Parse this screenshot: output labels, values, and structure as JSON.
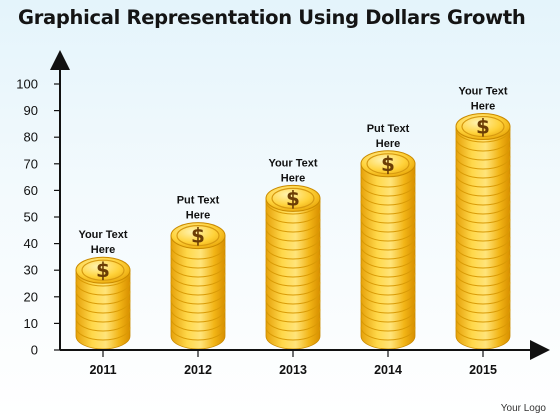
{
  "title": "Graphical Representation Using Dollars Growth",
  "logo_text": "Your Logo",
  "colors": {
    "coin_light": "#ffe680",
    "coin_mid": "#f5b914",
    "coin_dark": "#c98a00",
    "coin_edge": "#e0a300",
    "dollar_sign": "#6b3d06",
    "axis": "#111111"
  },
  "icons": {
    "coin": "dollar-coin-icon"
  },
  "chart_data": {
    "type": "bar",
    "title": "Graphical Representation Using Dollars Growth",
    "xlabel": "",
    "ylabel": "",
    "categories": [
      "2011",
      "2012",
      "2013",
      "2014",
      "2015"
    ],
    "values": [
      30,
      43,
      57,
      70,
      84
    ],
    "bar_style": "stacked gold dollar coins",
    "annotations": [
      [
        "Your Text",
        "Here"
      ],
      [
        "Put Text",
        "Here"
      ],
      [
        "Your Text",
        "Here"
      ],
      [
        "Put Text",
        "Here"
      ],
      [
        "Your Text",
        "Here"
      ]
    ],
    "ylim": [
      0,
      100
    ],
    "yticks": [
      "0",
      "10",
      "20",
      "30",
      "40",
      "50",
      "60",
      "70",
      "80",
      "90",
      "100"
    ],
    "grid": false,
    "legend": "none"
  }
}
